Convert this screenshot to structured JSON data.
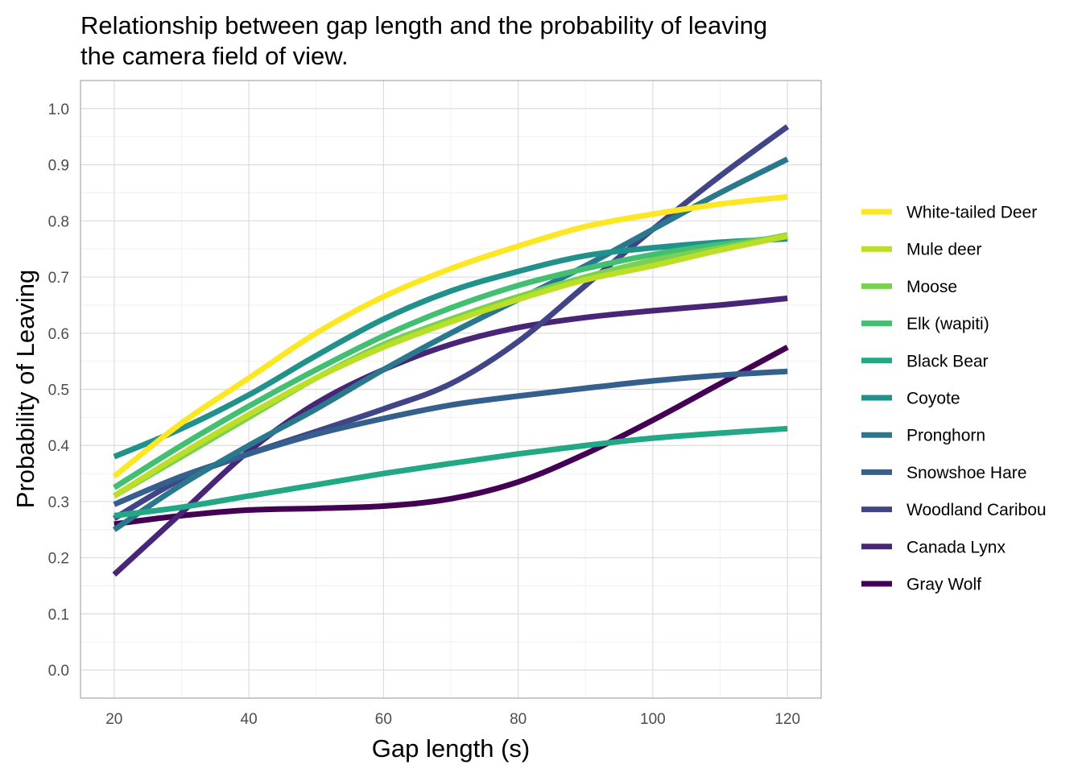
{
  "chart_data": {
    "type": "line",
    "title": "Relationship between gap length and the probability of leaving the camera field of view.",
    "title_lines": [
      "Relationship between gap length and the probability of leaving",
      "the camera field of view."
    ],
    "xlabel": "Gap length (s)",
    "ylabel": "Probability of Leaving",
    "xlim": [
      15,
      125
    ],
    "ylim": [
      -0.05,
      1.05
    ],
    "x_ticks": [
      20,
      40,
      60,
      80,
      100,
      120
    ],
    "x_tick_labels": [
      "20",
      "40",
      "60",
      "80",
      "100",
      "120"
    ],
    "y_ticks": [
      0.0,
      0.1,
      0.2,
      0.3,
      0.4,
      0.5,
      0.6,
      0.7,
      0.8,
      0.9,
      1.0
    ],
    "y_tick_labels": [
      "0.0",
      "0.1",
      "0.2",
      "0.3",
      "0.4",
      "0.5",
      "0.6",
      "0.7",
      "0.8",
      "0.9",
      "1.0"
    ],
    "grid": true,
    "legend_position": "right",
    "x": [
      20,
      30,
      40,
      50,
      60,
      70,
      80,
      90,
      100,
      110,
      120
    ],
    "series": [
      {
        "name": "White-tailed Deer",
        "color": "#FDE725",
        "values": [
          0.345,
          0.44,
          0.52,
          0.6,
          0.665,
          0.715,
          0.755,
          0.79,
          0.812,
          0.83,
          0.843
        ]
      },
      {
        "name": "Mule deer",
        "color": "#BBDF27",
        "values": [
          0.31,
          0.385,
          0.455,
          0.52,
          0.575,
          0.62,
          0.66,
          0.695,
          0.72,
          0.748,
          0.773
        ]
      },
      {
        "name": "Moose",
        "color": "#7AD151",
        "values": [
          0.31,
          0.38,
          0.45,
          0.52,
          0.58,
          0.625,
          0.665,
          0.7,
          0.73,
          0.752,
          0.775
        ]
      },
      {
        "name": "Elk (wapiti)",
        "color": "#43BF71",
        "values": [
          0.325,
          0.4,
          0.47,
          0.535,
          0.595,
          0.645,
          0.685,
          0.715,
          0.74,
          0.758,
          0.772
        ]
      },
      {
        "name": "Black Bear",
        "color": "#22A884",
        "values": [
          0.275,
          0.29,
          0.31,
          0.33,
          0.35,
          0.368,
          0.385,
          0.4,
          0.413,
          0.422,
          0.43
        ]
      },
      {
        "name": "Coyote",
        "color": "#21918C",
        "values": [
          0.38,
          0.43,
          0.49,
          0.56,
          0.625,
          0.675,
          0.71,
          0.738,
          0.752,
          0.762,
          0.768
        ]
      },
      {
        "name": "Pronghorn",
        "color": "#2A788E",
        "values": [
          0.25,
          0.33,
          0.4,
          0.465,
          0.535,
          0.6,
          0.66,
          0.72,
          0.785,
          0.85,
          0.91
        ]
      },
      {
        "name": "Snowshoe Hare",
        "color": "#355F8D",
        "values": [
          0.295,
          0.345,
          0.385,
          0.42,
          0.448,
          0.472,
          0.488,
          0.502,
          0.515,
          0.525,
          0.532
        ]
      },
      {
        "name": "Woodland Caribou",
        "color": "#414487",
        "values": [
          0.27,
          0.34,
          0.385,
          0.425,
          0.465,
          0.51,
          0.585,
          0.685,
          0.785,
          0.88,
          0.968
        ]
      },
      {
        "name": "Canada Lynx",
        "color": "#482576",
        "values": [
          0.17,
          0.28,
          0.39,
          0.475,
          0.535,
          0.58,
          0.61,
          0.628,
          0.64,
          0.65,
          0.662
        ]
      },
      {
        "name": "Gray Wolf",
        "color": "#440154",
        "values": [
          0.26,
          0.275,
          0.285,
          0.288,
          0.292,
          0.305,
          0.335,
          0.385,
          0.445,
          0.51,
          0.575
        ]
      }
    ]
  }
}
